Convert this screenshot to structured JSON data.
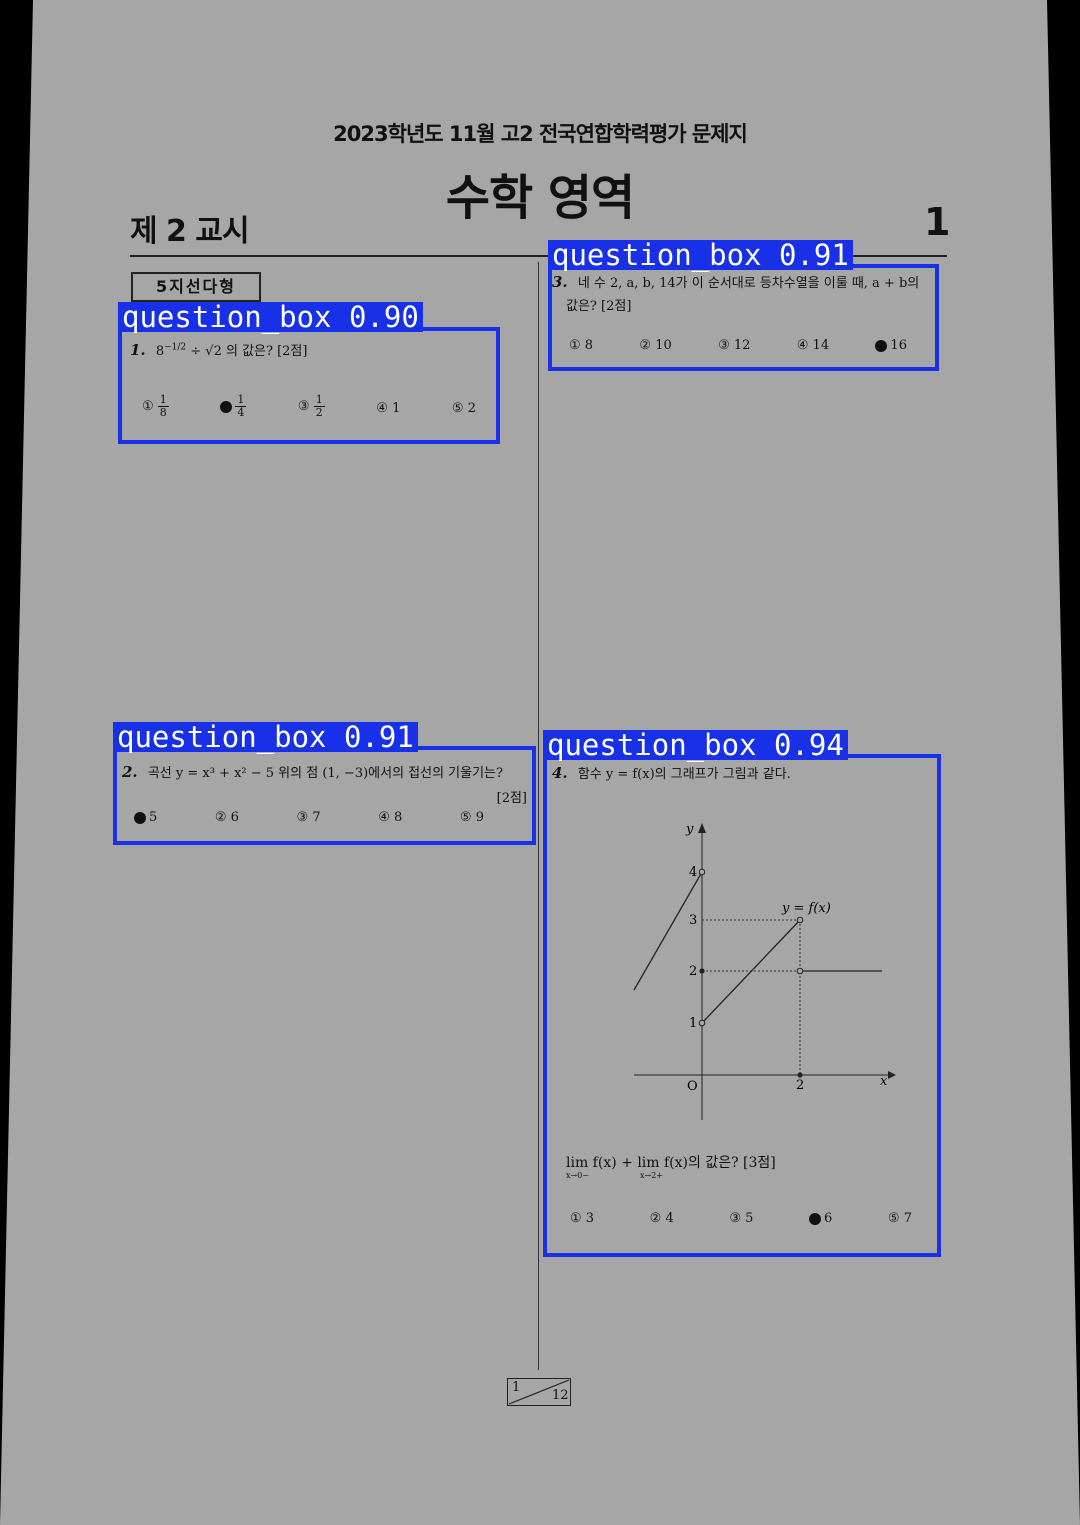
{
  "header": {
    "subtitle": "2023학년도 11월 고2 전국연합학력평가 문제지",
    "title": "수학 영역",
    "period": "제 2 교시",
    "page_number": "1"
  },
  "section_tag": "5지선다형",
  "questions": [
    {
      "number": "1.",
      "base": "8",
      "exponent": "−1/2",
      "text": "÷ √2 의 값은? [2점]",
      "options": [
        {
          "marker": "①",
          "num": "1",
          "den": "8",
          "selected": false
        },
        {
          "marker": "②",
          "num": "1",
          "den": "4",
          "selected": true
        },
        {
          "marker": "③",
          "num": "1",
          "den": "2",
          "selected": false
        },
        {
          "marker": "④",
          "value": "1",
          "selected": false
        },
        {
          "marker": "⑤",
          "value": "2",
          "selected": false
        }
      ]
    },
    {
      "number": "2.",
      "text": "곡선 y = x³ + x² − 5 위의 점 (1, −3)에서의 접선의 기울기는?",
      "points": "[2점]",
      "options": [
        {
          "marker": "①",
          "value": "5",
          "selected": true
        },
        {
          "marker": "②",
          "value": "6",
          "selected": false
        },
        {
          "marker": "③",
          "value": "7",
          "selected": false
        },
        {
          "marker": "④",
          "value": "8",
          "selected": false
        },
        {
          "marker": "⑤",
          "value": "9",
          "selected": false
        }
      ]
    },
    {
      "number": "3.",
      "text": "네 수 2, a, b, 14가 이 순서대로 등차수열을 이룰 때, a + b의",
      "text2": "값은? [2점]",
      "options": [
        {
          "marker": "①",
          "value": "8",
          "selected": false
        },
        {
          "marker": "②",
          "value": "10",
          "selected": false
        },
        {
          "marker": "③",
          "value": "12",
          "selected": false
        },
        {
          "marker": "④",
          "value": "14",
          "selected": false
        },
        {
          "marker": "⑤",
          "value": "16",
          "selected": true
        }
      ]
    },
    {
      "number": "4.",
      "text": "함수 y = f(x)의 그래프가 그림과 같다.",
      "limit_text": "lim f(x) + lim f(x)의 값은? [3점]",
      "limit_sub1": "x→0−",
      "limit_sub2": "x→2+",
      "graph": {
        "y_axis_label": "y",
        "x_axis_label": "x",
        "origin_label": "O",
        "curve_label": "y = f(x)",
        "y_ticks": [
          "1",
          "2",
          "3",
          "4"
        ],
        "x_ticks": [
          "2"
        ]
      },
      "options": [
        {
          "marker": "①",
          "value": "3",
          "selected": false
        },
        {
          "marker": "②",
          "value": "4",
          "selected": false
        },
        {
          "marker": "③",
          "value": "5",
          "selected": false
        },
        {
          "marker": "④",
          "value": "6",
          "selected": true
        },
        {
          "marker": "⑤",
          "value": "7",
          "selected": false
        }
      ]
    }
  ],
  "footer": {
    "current": "1",
    "total": "12"
  },
  "detections": [
    {
      "label": "question_box 0.90"
    },
    {
      "label": "question_box 0.91"
    },
    {
      "label": "question_box 0.91"
    },
    {
      "label": "question_box 0.94"
    }
  ],
  "colors": {
    "paper": "#a6a6a6",
    "detection": "#1830e8",
    "background": "#000000"
  }
}
